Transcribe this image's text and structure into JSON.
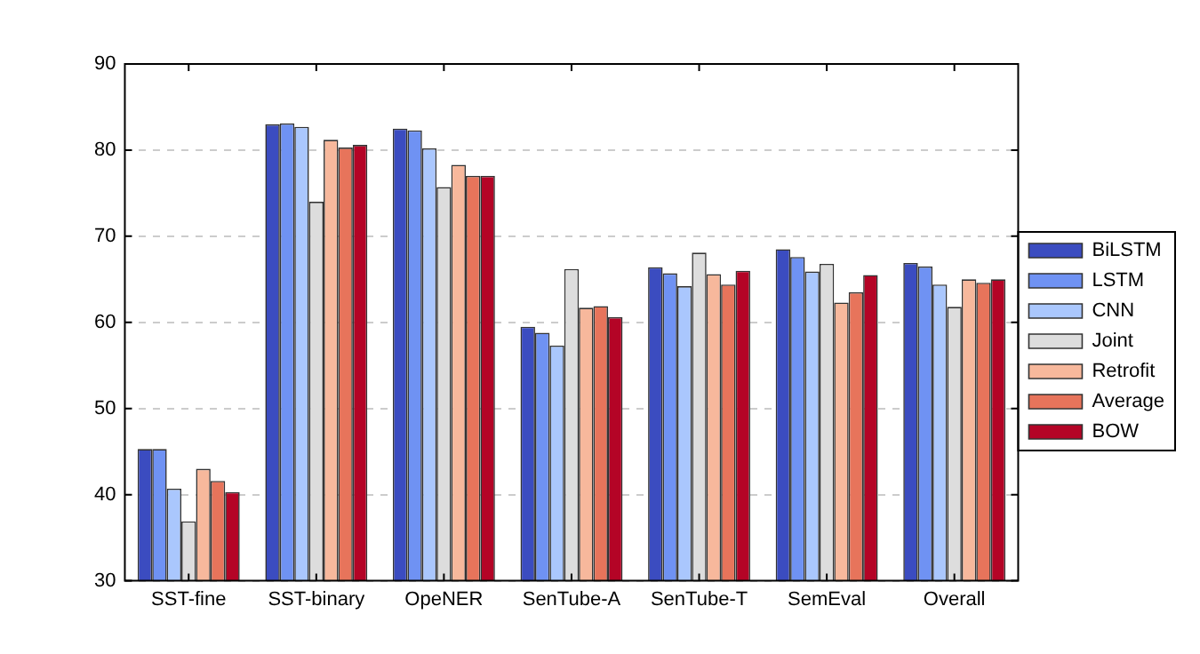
{
  "chart_data": {
    "type": "bar",
    "categories": [
      "SST-fine",
      "SST-binary",
      "OpeNER",
      "SenTube-A",
      "SenTube-T",
      "SemEval",
      "Overall"
    ],
    "series": [
      {
        "name": "BiLSTM",
        "color": "#3b4cc0",
        "values": [
          45.3,
          83.0,
          82.5,
          59.5,
          66.4,
          68.5,
          66.9
        ]
      },
      {
        "name": "LSTM",
        "color": "#6f92f3",
        "values": [
          45.3,
          83.1,
          82.3,
          58.8,
          65.7,
          67.6,
          66.5
        ]
      },
      {
        "name": "CNN",
        "color": "#aac7fd",
        "values": [
          40.7,
          82.7,
          80.2,
          57.3,
          64.2,
          65.9,
          64.4
        ]
      },
      {
        "name": "Joint",
        "color": "#dddddd",
        "values": [
          36.9,
          74.0,
          75.7,
          66.2,
          68.1,
          66.8,
          61.8
        ]
      },
      {
        "name": "Retrofit",
        "color": "#f7b89c",
        "values": [
          43.0,
          81.2,
          78.3,
          61.7,
          65.6,
          62.3,
          65.0
        ]
      },
      {
        "name": "Average",
        "color": "#e7745b",
        "values": [
          41.6,
          80.3,
          77.0,
          61.9,
          64.4,
          63.5,
          64.6
        ]
      },
      {
        "name": "BOW",
        "color": "#b40426",
        "values": [
          40.3,
          80.6,
          77.0,
          60.6,
          66.0,
          65.5,
          65.0
        ]
      }
    ],
    "ylim": [
      30,
      90
    ],
    "yticks": [
      30,
      40,
      50,
      60,
      70,
      80,
      90
    ],
    "grid": "y",
    "legend": "right"
  }
}
